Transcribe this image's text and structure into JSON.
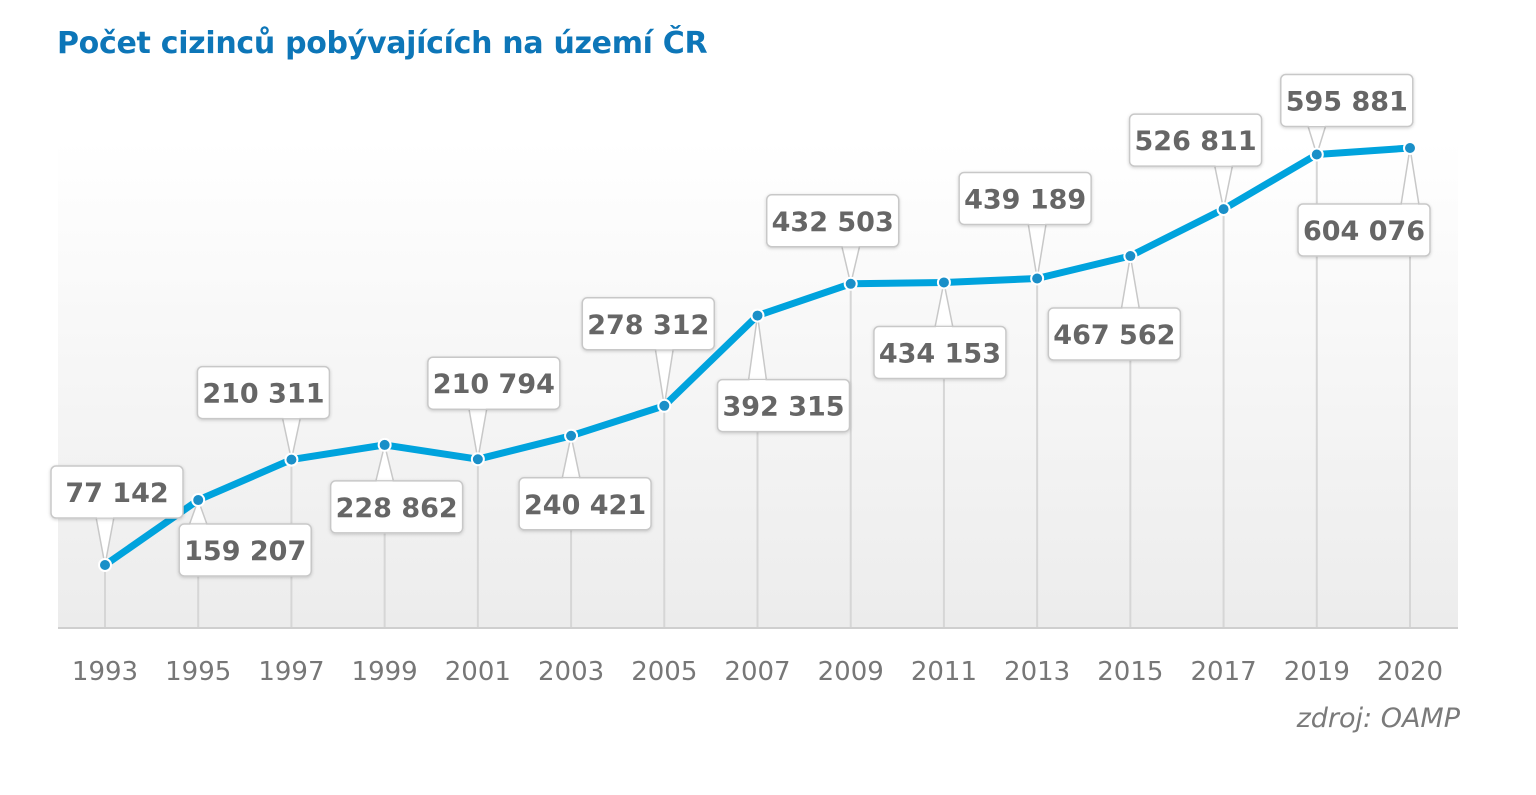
{
  "chart_data": {
    "type": "line",
    "title": "Počet cizinců pobývajících na území ČR",
    "categories": [
      "1993",
      "1995",
      "1997",
      "1999",
      "2001",
      "2003",
      "2005",
      "2007",
      "2009",
      "2011",
      "2013",
      "2015",
      "2017",
      "2019",
      "2020"
    ],
    "series": [
      {
        "values": [
          77142,
          159207,
          210311,
          228862,
          210794,
          240421,
          278312,
          392315,
          432503,
          434153,
          439189,
          467562,
          526811,
          595881,
          604076
        ],
        "labels": [
          "77 142",
          "159 207",
          "210 311",
          "228 862",
          "210 794",
          "240 421",
          "278 312",
          "392 315",
          "432 503",
          "434 153",
          "439 189",
          "467 562",
          "526 811",
          "595 881",
          "604 076"
        ]
      }
    ],
    "xlabel": "",
    "ylabel": "",
    "source": "zdroj: OAMP",
    "colors": {
      "title": "#0d76b8",
      "line": "#00a3dd",
      "marker": "#1a8fc8",
      "labels": "#666666",
      "ticks": "#777777"
    },
    "grid": false,
    "legend": "none"
  }
}
